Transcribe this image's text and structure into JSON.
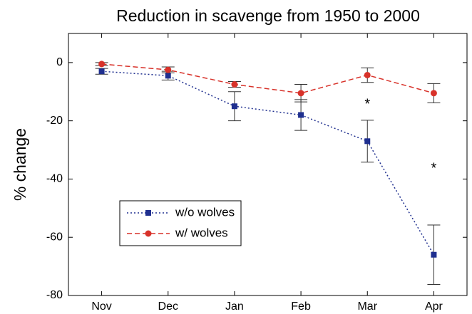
{
  "chart_data": {
    "type": "line",
    "title": "Reduction in scavenge from 1950 to 2000",
    "y_label": "% change",
    "categories": [
      "Nov",
      "Dec",
      "Jan",
      "Feb",
      "Mar",
      "Apr"
    ],
    "series": [
      {
        "name": "w/o wolves",
        "color": "#1f2f8f",
        "line_style": "dotted",
        "marker": "square",
        "values": [
          -3,
          -4.5,
          -15,
          -18,
          -27,
          -66
        ],
        "errors": [
          1,
          1.5,
          5,
          5.3,
          7.2,
          10.2
        ]
      },
      {
        "name": "w/ wolves",
        "color": "#d8322a",
        "line_style": "dashed",
        "marker": "circle",
        "values": [
          -0.5,
          -2.5,
          -7.5,
          -10.5,
          -4.3,
          -10.5
        ],
        "errors": [
          0.5,
          1,
          1,
          3,
          2.5,
          3.3
        ]
      }
    ],
    "annotations": [
      {
        "text": "*",
        "category": 4,
        "y": -13.5
      },
      {
        "text": "*",
        "category": 5,
        "y": -35.5
      }
    ],
    "ylim": [
      -80,
      10
    ],
    "yticks": [
      -80,
      -60,
      -40,
      -20,
      0
    ],
    "legend": "lower left"
  }
}
